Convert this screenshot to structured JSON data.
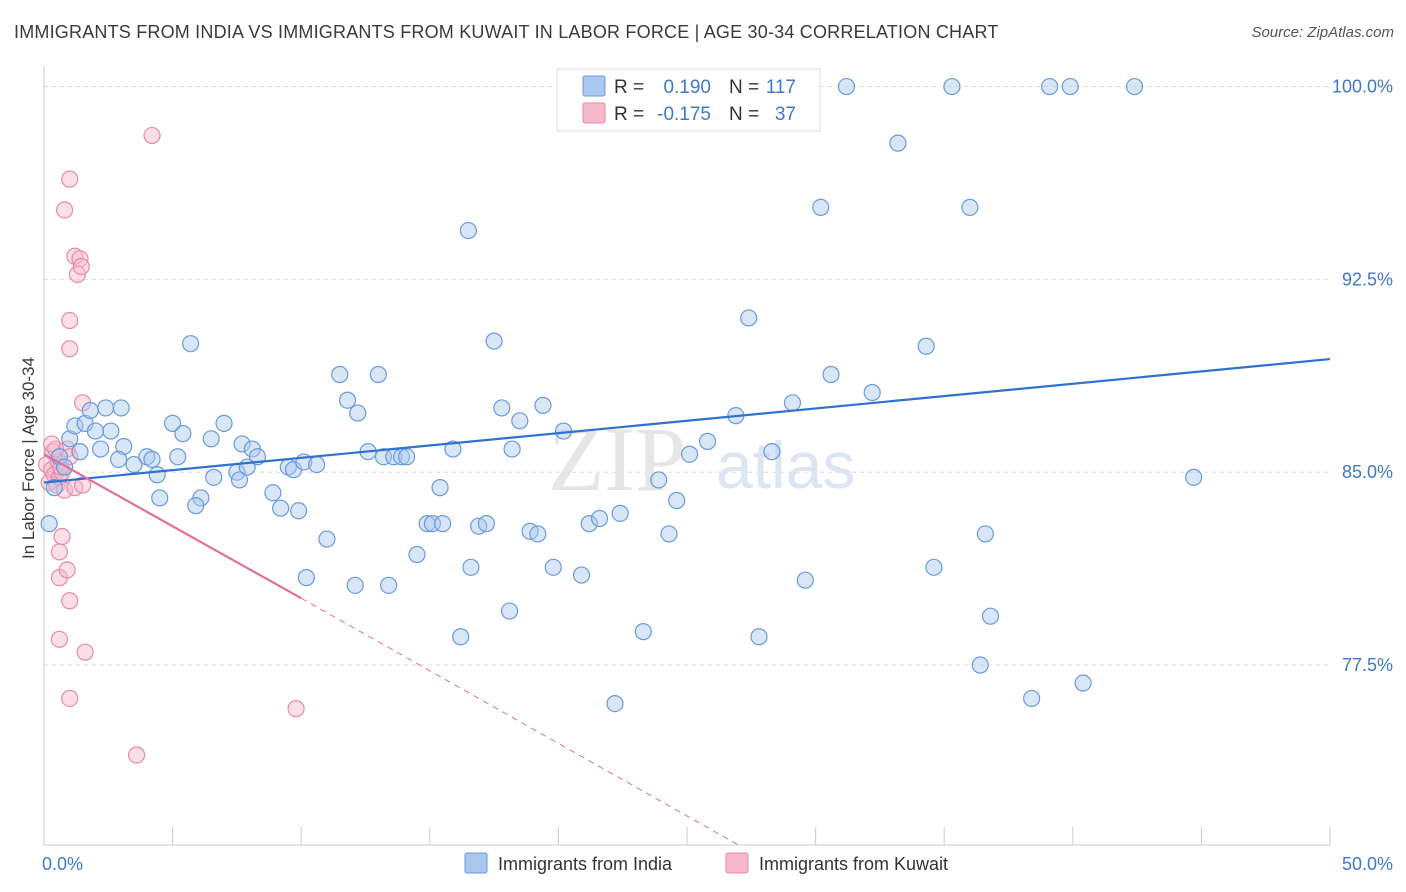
{
  "chart_data": {
    "type": "scatter",
    "title": "IMMIGRANTS FROM INDIA VS IMMIGRANTS FROM KUWAIT IN LABOR FORCE | AGE 30-34 CORRELATION CHART",
    "source": "Source: ZipAtlas.com",
    "ylabel": "In Labor Force | Age 30-34",
    "xlim": [
      0,
      50
    ],
    "ylim": [
      70.5,
      100.8
    ],
    "x_tick_labels": [
      "0.0%",
      "50.0%"
    ],
    "y_ticks": [
      {
        "value": 100.0,
        "label": "100.0%"
      },
      {
        "value": 92.5,
        "label": "92.5%"
      },
      {
        "value": 85.0,
        "label": "85.0%"
      },
      {
        "value": 77.5,
        "label": "77.5%"
      }
    ],
    "grid": true,
    "legend_position": "top-center",
    "watermark": {
      "zip": "ZIP",
      "atlas": "atlas"
    },
    "colors": {
      "india_fill": "#a9c7ef",
      "india_stroke": "#6a9bd8",
      "india_line": "#2f72d0",
      "kuwait_fill": "#f6b9cc",
      "kuwait_stroke": "#e88aa8",
      "kuwait_line": "#e0709a",
      "tick_text": "#3f78c9",
      "grid": "#dddddd"
    },
    "series": [
      {
        "name": "Immigrants from India",
        "legend_r_label": "R =",
        "r": "0.190",
        "legend_n_label": "N =",
        "n": "117",
        "trend": {
          "x0": 0,
          "y0": 84.6,
          "x1": 50,
          "y1": 89.4
        },
        "points": [
          [
            0.2,
            83.0
          ],
          [
            0.4,
            84.4
          ],
          [
            0.6,
            85.6
          ],
          [
            0.8,
            85.2
          ],
          [
            1.0,
            86.3
          ],
          [
            1.2,
            86.8
          ],
          [
            1.4,
            85.8
          ],
          [
            1.6,
            86.9
          ],
          [
            1.8,
            87.4
          ],
          [
            2.0,
            86.6
          ],
          [
            2.2,
            85.9
          ],
          [
            2.4,
            87.5
          ],
          [
            2.6,
            86.6
          ],
          [
            3.0,
            87.5
          ],
          [
            3.1,
            86.0
          ],
          [
            3.5,
            85.3
          ],
          [
            4.0,
            85.6
          ],
          [
            4.2,
            85.5
          ],
          [
            4.4,
            84.9
          ],
          [
            4.5,
            84.0
          ],
          [
            5.0,
            86.9
          ],
          [
            5.2,
            85.6
          ],
          [
            5.4,
            86.5
          ],
          [
            5.7,
            90.0
          ],
          [
            6.1,
            84.0
          ],
          [
            6.5,
            86.3
          ],
          [
            6.6,
            84.8
          ],
          [
            7.0,
            86.9
          ],
          [
            7.5,
            85.0
          ],
          [
            7.6,
            84.7
          ],
          [
            7.7,
            86.1
          ],
          [
            8.1,
            85.9
          ],
          [
            8.3,
            85.6
          ],
          [
            8.9,
            84.2
          ],
          [
            9.2,
            83.6
          ],
          [
            9.5,
            85.2
          ],
          [
            9.7,
            85.1
          ],
          [
            9.9,
            83.5
          ],
          [
            10.1,
            85.4
          ],
          [
            10.2,
            80.9
          ],
          [
            10.6,
            85.3
          ],
          [
            11.0,
            82.4
          ],
          [
            11.5,
            88.8
          ],
          [
            11.8,
            87.8
          ],
          [
            12.2,
            87.3
          ],
          [
            12.6,
            85.8
          ],
          [
            13.0,
            88.8
          ],
          [
            13.2,
            85.6
          ],
          [
            13.4,
            80.6
          ],
          [
            13.6,
            85.6
          ],
          [
            13.9,
            85.6
          ],
          [
            14.1,
            85.6
          ],
          [
            14.5,
            81.8
          ],
          [
            14.9,
            83.0
          ],
          [
            15.1,
            83.0
          ],
          [
            15.5,
            83.0
          ],
          [
            15.9,
            85.9
          ],
          [
            16.2,
            78.6
          ],
          [
            16.6,
            81.3
          ],
          [
            16.9,
            82.9
          ],
          [
            17.2,
            83.0
          ],
          [
            17.5,
            90.1
          ],
          [
            17.8,
            87.5
          ],
          [
            18.1,
            79.6
          ],
          [
            18.5,
            87.0
          ],
          [
            18.9,
            82.7
          ],
          [
            19.2,
            82.6
          ],
          [
            19.4,
            87.6
          ],
          [
            19.8,
            81.3
          ],
          [
            20.2,
            86.6
          ],
          [
            20.9,
            81.0
          ],
          [
            21.2,
            83.0
          ],
          [
            21.6,
            83.2
          ],
          [
            22.2,
            76.0
          ],
          [
            23.3,
            78.8
          ],
          [
            23.9,
            84.7
          ],
          [
            24.3,
            82.6
          ],
          [
            24.6,
            83.9
          ],
          [
            25.1,
            85.7
          ],
          [
            25.8,
            86.2
          ],
          [
            26.9,
            87.2
          ],
          [
            27.4,
            91.0
          ],
          [
            27.8,
            78.6
          ],
          [
            28.3,
            85.8
          ],
          [
            29.1,
            87.7
          ],
          [
            29.6,
            80.8
          ],
          [
            30.2,
            95.3
          ],
          [
            30.6,
            88.8
          ],
          [
            31.2,
            100.0
          ],
          [
            32.2,
            88.1
          ],
          [
            33.2,
            97.8
          ],
          [
            34.3,
            89.9
          ],
          [
            34.6,
            81.3
          ],
          [
            35.3,
            100.0
          ],
          [
            36.0,
            95.3
          ],
          [
            36.4,
            77.5
          ],
          [
            36.6,
            82.6
          ],
          [
            36.8,
            79.4
          ],
          [
            38.4,
            76.2
          ],
          [
            39.1,
            100.0
          ],
          [
            39.9,
            100.0
          ],
          [
            40.4,
            76.8
          ],
          [
            20.4,
            100.0
          ],
          [
            21.8,
            100.0
          ],
          [
            26.1,
            100.0
          ],
          [
            26.6,
            100.0
          ],
          [
            27.1,
            100.0
          ],
          [
            42.4,
            100.0
          ],
          [
            44.7,
            84.8
          ],
          [
            16.5,
            94.4
          ],
          [
            2.9,
            85.5
          ],
          [
            5.9,
            83.7
          ],
          [
            7.9,
            85.2
          ],
          [
            12.1,
            80.6
          ],
          [
            15.4,
            84.4
          ],
          [
            18.2,
            85.9
          ],
          [
            22.4,
            83.4
          ]
        ]
      },
      {
        "name": "Immigrants from Kuwait",
        "legend_r_label": "R =",
        "r": "-0.175",
        "legend_n_label": "N =",
        "n": "37",
        "trend_solid": {
          "x0": 0,
          "y0": 85.7,
          "x1": 10,
          "y1": 80.1
        },
        "trend_dashed": {
          "x0": 10,
          "y0": 80.1,
          "x1": 27,
          "y1": 70.5
        },
        "points": [
          [
            0.1,
            85.3
          ],
          [
            0.2,
            84.6
          ],
          [
            0.3,
            85.1
          ],
          [
            0.35,
            85.8
          ],
          [
            0.4,
            84.9
          ],
          [
            0.5,
            84.5
          ],
          [
            0.55,
            85.4
          ],
          [
            0.6,
            84.8
          ],
          [
            0.7,
            85.0
          ],
          [
            0.8,
            84.3
          ],
          [
            0.9,
            85.9
          ],
          [
            1.0,
            85.6
          ],
          [
            0.45,
            85.9
          ],
          [
            0.65,
            85.2
          ],
          [
            1.2,
            84.4
          ],
          [
            0.3,
            86.1
          ],
          [
            0.6,
            81.9
          ],
          [
            0.7,
            82.5
          ],
          [
            0.6,
            80.9
          ],
          [
            0.9,
            81.2
          ],
          [
            1.0,
            80.0
          ],
          [
            0.6,
            78.5
          ],
          [
            1.6,
            78.0
          ],
          [
            1.0,
            76.2
          ],
          [
            4.2,
            98.1
          ],
          [
            1.0,
            96.4
          ],
          [
            0.8,
            95.2
          ],
          [
            1.2,
            93.4
          ],
          [
            1.4,
            93.3
          ],
          [
            1.3,
            92.7
          ],
          [
            1.45,
            93.0
          ],
          [
            1.0,
            90.9
          ],
          [
            1.0,
            89.8
          ],
          [
            1.5,
            87.7
          ],
          [
            1.5,
            84.5
          ],
          [
            9.8,
            75.8
          ],
          [
            3.6,
            74.0
          ]
        ]
      }
    ]
  }
}
